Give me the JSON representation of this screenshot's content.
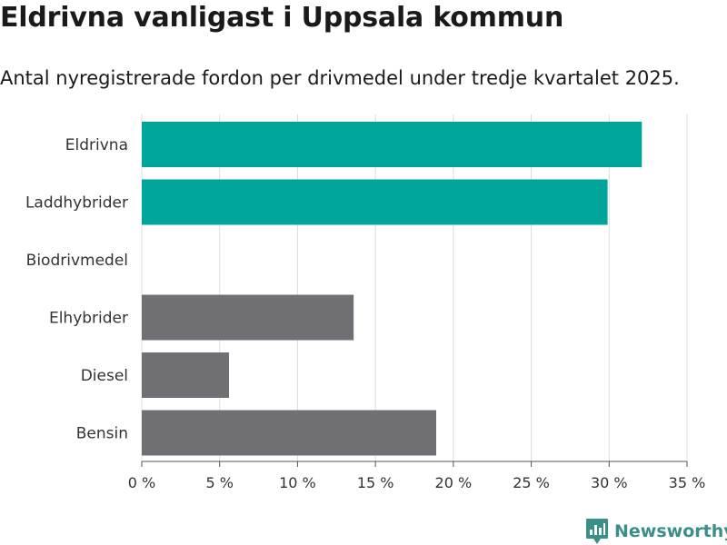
{
  "chart_data": {
    "type": "bar",
    "orientation": "horizontal",
    "title": "Eldrivna vanligast i Uppsala kommun",
    "subtitle": "Antal nyregistrerade fordon per drivmedel under tredje kvartalet 2025.",
    "categories": [
      "Eldrivna",
      "Laddhybrider",
      "Biodrivmedel",
      "Elhybrider",
      "Diesel",
      "Bensin"
    ],
    "values": [
      32.1,
      29.9,
      0,
      13.6,
      5.6,
      18.9
    ],
    "colors": [
      "#00a59a",
      "#00a59a",
      "#706f74",
      "#706f74",
      "#706f74",
      "#706f74"
    ],
    "xlabel": "",
    "ylabel": "",
    "xlim": [
      0,
      35
    ],
    "xticks": [
      0,
      5,
      10,
      15,
      20,
      25,
      30,
      35
    ],
    "xtick_labels": [
      "0 %",
      "5 %",
      "10 %",
      "15 %",
      "20 %",
      "25 %",
      "30 %",
      "35 %"
    ],
    "grid": true,
    "legend": "none"
  },
  "branding": {
    "name": "Newsworthy",
    "icon": "newsworthy-logo-icon",
    "color": "#3a8f87"
  }
}
